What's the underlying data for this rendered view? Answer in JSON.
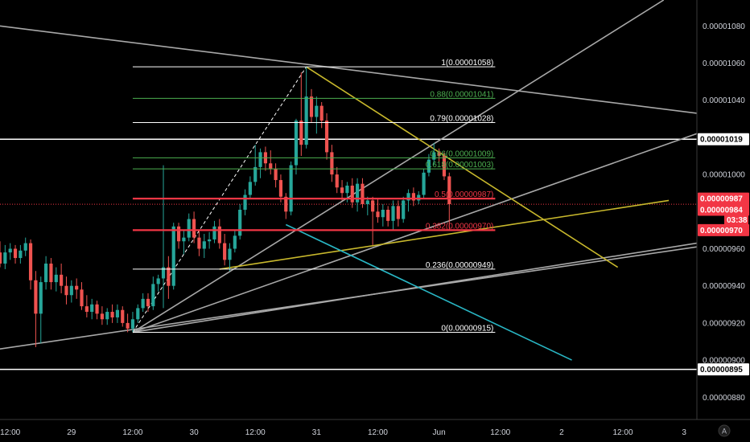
{
  "chart_data": {
    "type": "candlestick",
    "theme": "dark",
    "grid": false,
    "x_ticks": [
      {
        "t": 0,
        "label": "12:00"
      },
      {
        "t": 12,
        "label": "29"
      },
      {
        "t": 24,
        "label": "12:00"
      },
      {
        "t": 36,
        "label": "30"
      },
      {
        "t": 48,
        "label": "12:00"
      },
      {
        "t": 60,
        "label": "31"
      },
      {
        "t": 72,
        "label": "12:00"
      },
      {
        "t": 84,
        "label": "Jun"
      },
      {
        "t": 96,
        "label": "12:00"
      },
      {
        "t": 108,
        "label": "2"
      },
      {
        "t": 120,
        "label": "12:00"
      },
      {
        "t": 132,
        "label": "3"
      }
    ],
    "x_range": [
      -2,
      134.5
    ],
    "y_range": [
      8.68e-06,
      1.094e-05
    ],
    "y_ticks": [
      {
        "v": 1.08e-05,
        "label": "0.00001080"
      },
      {
        "v": 1.06e-05,
        "label": "0.00001060"
      },
      {
        "v": 1.04e-05,
        "label": "0.00001040"
      },
      {
        "v": 1.02e-05,
        "label": "0.00001020"
      },
      {
        "v": 1e-05,
        "label": "0.00001000"
      },
      {
        "v": 9.8e-06,
        "label": "0.00000980"
      },
      {
        "v": 9.6e-06,
        "label": "0.00000960"
      },
      {
        "v": 9.4e-06,
        "label": "0.00000940"
      },
      {
        "v": 9.2e-06,
        "label": "0.00000920"
      },
      {
        "v": 9e-06,
        "label": "0.00000900"
      },
      {
        "v": 8.8e-06,
        "label": "0.00000880"
      }
    ],
    "price_tags": [
      {
        "label": "0.00001019",
        "v": 1.019e-05,
        "bg": "#ffffff",
        "fg": "#000000"
      },
      {
        "label": "0.00000987",
        "v": 9.87e-06,
        "bg": "#f23645",
        "fg": "#ffffff"
      },
      {
        "label": "0.00000984",
        "v": 9.81e-06,
        "bg": "#f23645",
        "fg": "#ffffff"
      },
      {
        "label": "03:38",
        "v": 9.755e-06,
        "bg": "#f23645",
        "fg": "#ffffff"
      },
      {
        "label": "0.00000970",
        "v": 9.7e-06,
        "bg": "#f23645",
        "fg": "#ffffff"
      },
      {
        "label": "0.00000895",
        "v": 8.95e-06,
        "bg": "#ffffff",
        "fg": "#000000"
      }
    ],
    "fib_levels": [
      {
        "label": "1(0.00001058)",
        "v": 1.058e-05,
        "color": "#ffffff"
      },
      {
        "label": "0.88(0.00001041)",
        "v": 1.041e-05,
        "color": "#4caf50"
      },
      {
        "label": "0.79(0.00001028)",
        "v": 1.028e-05,
        "color": "#ffffff"
      },
      {
        "label": "0.66(0.00001009)",
        "v": 1.009e-05,
        "color": "#4caf50"
      },
      {
        "label": "0.618(0.00001003)",
        "v": 1.003e-05,
        "color": "#4caf50"
      },
      {
        "label": "0.5(0.00000987)",
        "v": 9.87e-06,
        "color": "#f23645"
      },
      {
        "label": "0.382(0.00000970)",
        "v": 9.7e-06,
        "color": "#f23645"
      },
      {
        "label": "0.236(0.00000949)",
        "v": 9.49e-06,
        "color": "#ffffff"
      },
      {
        "label": "0(0.00000915)",
        "v": 9.15e-06,
        "color": "#ffffff"
      }
    ],
    "fib_x_range": [
      24,
      95
    ],
    "horizontal_lines": [
      {
        "v": 1.019e-05,
        "color": "#ffffff"
      },
      {
        "v": 8.95e-06,
        "color": "#ffffff"
      }
    ],
    "current_price": 9.84e-06,
    "trend_lines": [
      {
        "x1": -2,
        "y1": 1.08e-05,
        "x2": 134.5,
        "y2": 1.033e-05,
        "color": "#a8a8a8"
      },
      {
        "x1": -2,
        "y1": 9.06e-06,
        "x2": 134.5,
        "y2": 9.61e-06,
        "color": "#a8a8a8"
      },
      {
        "x1": 24,
        "y1": 9.15e-06,
        "x2": 128,
        "y2": 1.094e-05,
        "color": "#a8a8a8"
      },
      {
        "x1": 24,
        "y1": 9.15e-06,
        "x2": 134.5,
        "y2": 1.022e-05,
        "color": "#a8a8a8"
      },
      {
        "x1": 24,
        "y1": 9.15e-06,
        "x2": 134.5,
        "y2": 9.63e-06,
        "color": "#a8a8a8"
      },
      {
        "x1": 41,
        "y1": 9.49e-06,
        "x2": 129,
        "y2": 9.86e-06,
        "color": "#c8b82c"
      },
      {
        "x1": 58,
        "y1": 1.058e-05,
        "x2": 119,
        "y2": 9.5e-06,
        "color": "#c8b82c"
      },
      {
        "x1": 54,
        "y1": 9.73e-06,
        "x2": 110,
        "y2": 9e-06,
        "color": "#29b6c4"
      }
    ],
    "dashed_lines": [
      {
        "x1": 24,
        "y1": 9.15e-06,
        "x2": 58,
        "y2": 1.058e-05,
        "color": "#ffffff"
      }
    ],
    "candles": [
      {
        "t": -2,
        "o": 9.58,
        "h": 9.64,
        "l": 9.5,
        "c": 9.52
      },
      {
        "t": -1,
        "o": 9.52,
        "h": 9.62,
        "l": 9.49,
        "c": 9.58
      },
      {
        "t": 0,
        "o": 9.58,
        "h": 9.63,
        "l": 9.54,
        "c": 9.6
      },
      {
        "t": 1,
        "o": 9.6,
        "h": 9.62,
        "l": 9.52,
        "c": 9.55
      },
      {
        "t": 2,
        "o": 9.55,
        "h": 9.62,
        "l": 9.52,
        "c": 9.59
      },
      {
        "t": 3,
        "o": 9.59,
        "h": 9.66,
        "l": 9.56,
        "c": 9.63
      },
      {
        "t": 4,
        "o": 9.63,
        "h": 9.65,
        "l": 9.38,
        "c": 9.43
      },
      {
        "t": 5,
        "o": 9.43,
        "h": 9.48,
        "l": 9.07,
        "c": 9.25
      },
      {
        "t": 6,
        "o": 9.25,
        "h": 9.45,
        "l": 9.09,
        "c": 9.42
      },
      {
        "t": 7,
        "o": 9.42,
        "h": 9.56,
        "l": 9.38,
        "c": 9.52
      },
      {
        "t": 8,
        "o": 9.52,
        "h": 9.55,
        "l": 9.38,
        "c": 9.42
      },
      {
        "t": 9,
        "o": 9.42,
        "h": 9.5,
        "l": 9.37,
        "c": 9.46
      },
      {
        "t": 10,
        "o": 9.46,
        "h": 9.52,
        "l": 9.36,
        "c": 9.4
      },
      {
        "t": 11,
        "o": 9.4,
        "h": 9.45,
        "l": 9.3,
        "c": 9.35
      },
      {
        "t": 12,
        "o": 9.35,
        "h": 9.43,
        "l": 9.31,
        "c": 9.4
      },
      {
        "t": 13,
        "o": 9.4,
        "h": 9.44,
        "l": 9.33,
        "c": 9.38
      },
      {
        "t": 14,
        "o": 9.38,
        "h": 9.42,
        "l": 9.27,
        "c": 9.29
      },
      {
        "t": 15,
        "o": 9.29,
        "h": 9.35,
        "l": 9.23,
        "c": 9.26
      },
      {
        "t": 16,
        "o": 9.26,
        "h": 9.33,
        "l": 9.22,
        "c": 9.3
      },
      {
        "t": 17,
        "o": 9.3,
        "h": 9.32,
        "l": 9.22,
        "c": 9.25
      },
      {
        "t": 18,
        "o": 9.25,
        "h": 9.29,
        "l": 9.19,
        "c": 9.22
      },
      {
        "t": 19,
        "o": 9.22,
        "h": 9.28,
        "l": 9.19,
        "c": 9.26
      },
      {
        "t": 20,
        "o": 9.26,
        "h": 9.3,
        "l": 9.2,
        "c": 9.23
      },
      {
        "t": 21,
        "o": 9.23,
        "h": 9.3,
        "l": 9.2,
        "c": 9.27
      },
      {
        "t": 22,
        "o": 9.27,
        "h": 9.29,
        "l": 9.18,
        "c": 9.2
      },
      {
        "t": 23,
        "o": 9.2,
        "h": 9.25,
        "l": 9.15,
        "c": 9.17
      },
      {
        "t": 24,
        "o": 9.17,
        "h": 9.26,
        "l": 9.15,
        "c": 9.22
      },
      {
        "t": 25,
        "o": 9.22,
        "h": 9.3,
        "l": 9.2,
        "c": 9.28
      },
      {
        "t": 26,
        "o": 9.28,
        "h": 9.36,
        "l": 9.26,
        "c": 9.33
      },
      {
        "t": 27,
        "o": 9.33,
        "h": 9.36,
        "l": 9.26,
        "c": 9.29
      },
      {
        "t": 28,
        "o": 9.29,
        "h": 9.45,
        "l": 9.27,
        "c": 9.41
      },
      {
        "t": 29,
        "o": 9.41,
        "h": 9.46,
        "l": 9.37,
        "c": 9.44
      },
      {
        "t": 30,
        "o": 9.44,
        "h": 10.05,
        "l": 9.28,
        "c": 9.5
      },
      {
        "t": 31,
        "o": 9.5,
        "h": 9.56,
        "l": 9.33,
        "c": 9.4
      },
      {
        "t": 32,
        "o": 9.4,
        "h": 9.74,
        "l": 9.38,
        "c": 9.72
      },
      {
        "t": 33,
        "o": 9.72,
        "h": 9.74,
        "l": 9.6,
        "c": 9.64
      },
      {
        "t": 34,
        "o": 9.64,
        "h": 9.7,
        "l": 9.57,
        "c": 9.66
      },
      {
        "t": 35,
        "o": 9.66,
        "h": 9.79,
        "l": 9.64,
        "c": 9.76
      },
      {
        "t": 36,
        "o": 9.76,
        "h": 9.8,
        "l": 9.63,
        "c": 9.66
      },
      {
        "t": 37,
        "o": 9.66,
        "h": 9.7,
        "l": 9.56,
        "c": 9.6
      },
      {
        "t": 38,
        "o": 9.6,
        "h": 9.68,
        "l": 9.55,
        "c": 9.64
      },
      {
        "t": 39,
        "o": 9.64,
        "h": 9.69,
        "l": 9.6,
        "c": 9.65
      },
      {
        "t": 40,
        "o": 9.65,
        "h": 9.75,
        "l": 9.63,
        "c": 9.72
      },
      {
        "t": 41,
        "o": 9.72,
        "h": 9.76,
        "l": 9.6,
        "c": 9.63
      },
      {
        "t": 42,
        "o": 9.63,
        "h": 9.68,
        "l": 9.51,
        "c": 9.54
      },
      {
        "t": 43,
        "o": 9.54,
        "h": 9.63,
        "l": 9.48,
        "c": 9.6
      },
      {
        "t": 44,
        "o": 9.6,
        "h": 9.7,
        "l": 9.58,
        "c": 9.67
      },
      {
        "t": 45,
        "o": 9.67,
        "h": 9.84,
        "l": 9.65,
        "c": 9.81
      },
      {
        "t": 46,
        "o": 9.81,
        "h": 9.92,
        "l": 9.78,
        "c": 9.89
      },
      {
        "t": 47,
        "o": 9.89,
        "h": 9.99,
        "l": 9.87,
        "c": 9.96
      },
      {
        "t": 48,
        "o": 9.96,
        "h": 10.16,
        "l": 9.94,
        "c": 10.04
      },
      {
        "t": 49,
        "o": 10.04,
        "h": 10.14,
        "l": 9.98,
        "c": 10.12
      },
      {
        "t": 50,
        "o": 10.12,
        "h": 10.15,
        "l": 10.02,
        "c": 10.06
      },
      {
        "t": 51,
        "o": 10.06,
        "h": 10.13,
        "l": 10.0,
        "c": 10.03
      },
      {
        "t": 52,
        "o": 10.03,
        "h": 10.06,
        "l": 9.93,
        "c": 9.97
      },
      {
        "t": 53,
        "o": 9.97,
        "h": 10.0,
        "l": 9.85,
        "c": 9.88
      },
      {
        "t": 54,
        "o": 9.88,
        "h": 9.9,
        "l": 9.76,
        "c": 9.8
      },
      {
        "t": 55,
        "o": 9.8,
        "h": 10.07,
        "l": 9.78,
        "c": 10.05
      },
      {
        "t": 56,
        "o": 10.05,
        "h": 10.3,
        "l": 10.0,
        "c": 10.29
      },
      {
        "t": 57,
        "o": 10.29,
        "h": 10.55,
        "l": 10.1,
        "c": 10.16
      },
      {
        "t": 58,
        "o": 10.16,
        "h": 10.58,
        "l": 10.14,
        "c": 10.42
      },
      {
        "t": 59,
        "o": 10.42,
        "h": 10.46,
        "l": 10.28,
        "c": 10.31
      },
      {
        "t": 60,
        "o": 10.31,
        "h": 10.42,
        "l": 10.22,
        "c": 10.37
      },
      {
        "t": 61,
        "o": 10.37,
        "h": 10.39,
        "l": 10.25,
        "c": 10.29
      },
      {
        "t": 62,
        "o": 10.29,
        "h": 10.33,
        "l": 10.08,
        "c": 10.12
      },
      {
        "t": 63,
        "o": 10.12,
        "h": 10.16,
        "l": 9.96,
        "c": 10.0
      },
      {
        "t": 64,
        "o": 10.0,
        "h": 10.04,
        "l": 9.9,
        "c": 9.93
      },
      {
        "t": 65,
        "o": 9.93,
        "h": 9.97,
        "l": 9.86,
        "c": 9.9
      },
      {
        "t": 66,
        "o": 9.9,
        "h": 9.96,
        "l": 9.85,
        "c": 9.94
      },
      {
        "t": 67,
        "o": 9.94,
        "h": 9.98,
        "l": 9.82,
        "c": 9.85
      },
      {
        "t": 68,
        "o": 9.85,
        "h": 9.98,
        "l": 9.8,
        "c": 9.95
      },
      {
        "t": 69,
        "o": 9.95,
        "h": 9.98,
        "l": 9.82,
        "c": 9.84
      },
      {
        "t": 70,
        "o": 9.84,
        "h": 9.88,
        "l": 9.78,
        "c": 9.86
      },
      {
        "t": 71,
        "o": 9.86,
        "h": 9.88,
        "l": 9.62,
        "c": 9.8
      },
      {
        "t": 72,
        "o": 9.8,
        "h": 9.87,
        "l": 9.74,
        "c": 9.77
      },
      {
        "t": 73,
        "o": 9.77,
        "h": 9.84,
        "l": 9.72,
        "c": 9.81
      },
      {
        "t": 74,
        "o": 9.81,
        "h": 9.83,
        "l": 9.72,
        "c": 9.75
      },
      {
        "t": 75,
        "o": 9.75,
        "h": 9.86,
        "l": 9.7,
        "c": 9.83
      },
      {
        "t": 76,
        "o": 9.83,
        "h": 9.86,
        "l": 9.72,
        "c": 9.76
      },
      {
        "t": 77,
        "o": 9.76,
        "h": 9.88,
        "l": 9.74,
        "c": 9.86
      },
      {
        "t": 78,
        "o": 9.86,
        "h": 9.92,
        "l": 9.8,
        "c": 9.9
      },
      {
        "t": 79,
        "o": 9.9,
        "h": 9.93,
        "l": 9.83,
        "c": 9.86
      },
      {
        "t": 80,
        "o": 9.86,
        "h": 9.91,
        "l": 9.84,
        "c": 9.89
      },
      {
        "t": 81,
        "o": 9.89,
        "h": 10.03,
        "l": 9.87,
        "c": 10.01
      },
      {
        "t": 82,
        "o": 10.01,
        "h": 10.11,
        "l": 9.99,
        "c": 10.08
      },
      {
        "t": 83,
        "o": 10.08,
        "h": 10.17,
        "l": 10.05,
        "c": 10.12
      },
      {
        "t": 84,
        "o": 10.12,
        "h": 10.14,
        "l": 10.07,
        "c": 10.1
      },
      {
        "t": 85,
        "o": 10.1,
        "h": 10.12,
        "l": 9.97,
        "c": 9.99
      },
      {
        "t": 86,
        "o": 9.99,
        "h": 10.01,
        "l": 9.7,
        "c": 9.84
      }
    ]
  }
}
